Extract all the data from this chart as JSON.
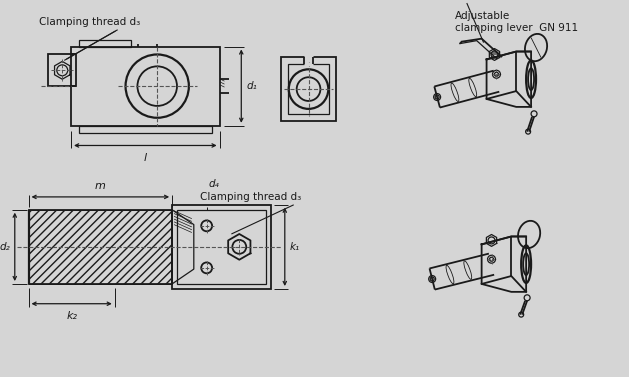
{
  "bg_color": "#d5d5d5",
  "line_color": "#1a1a1a",
  "dashed_color": "#555555",
  "top_label": "Clamping thread d₃",
  "bottom_label": "Clamping thread d₃",
  "top_right_label1": "Adjustable",
  "top_right_label2": "clamping lever  GN 911",
  "dim_d1": "d₁",
  "dim_d2": "d₂",
  "dim_d4": "d₄",
  "dim_l": "l",
  "dim_m": "m",
  "dim_k1": "k₁",
  "dim_k2": "k₂"
}
